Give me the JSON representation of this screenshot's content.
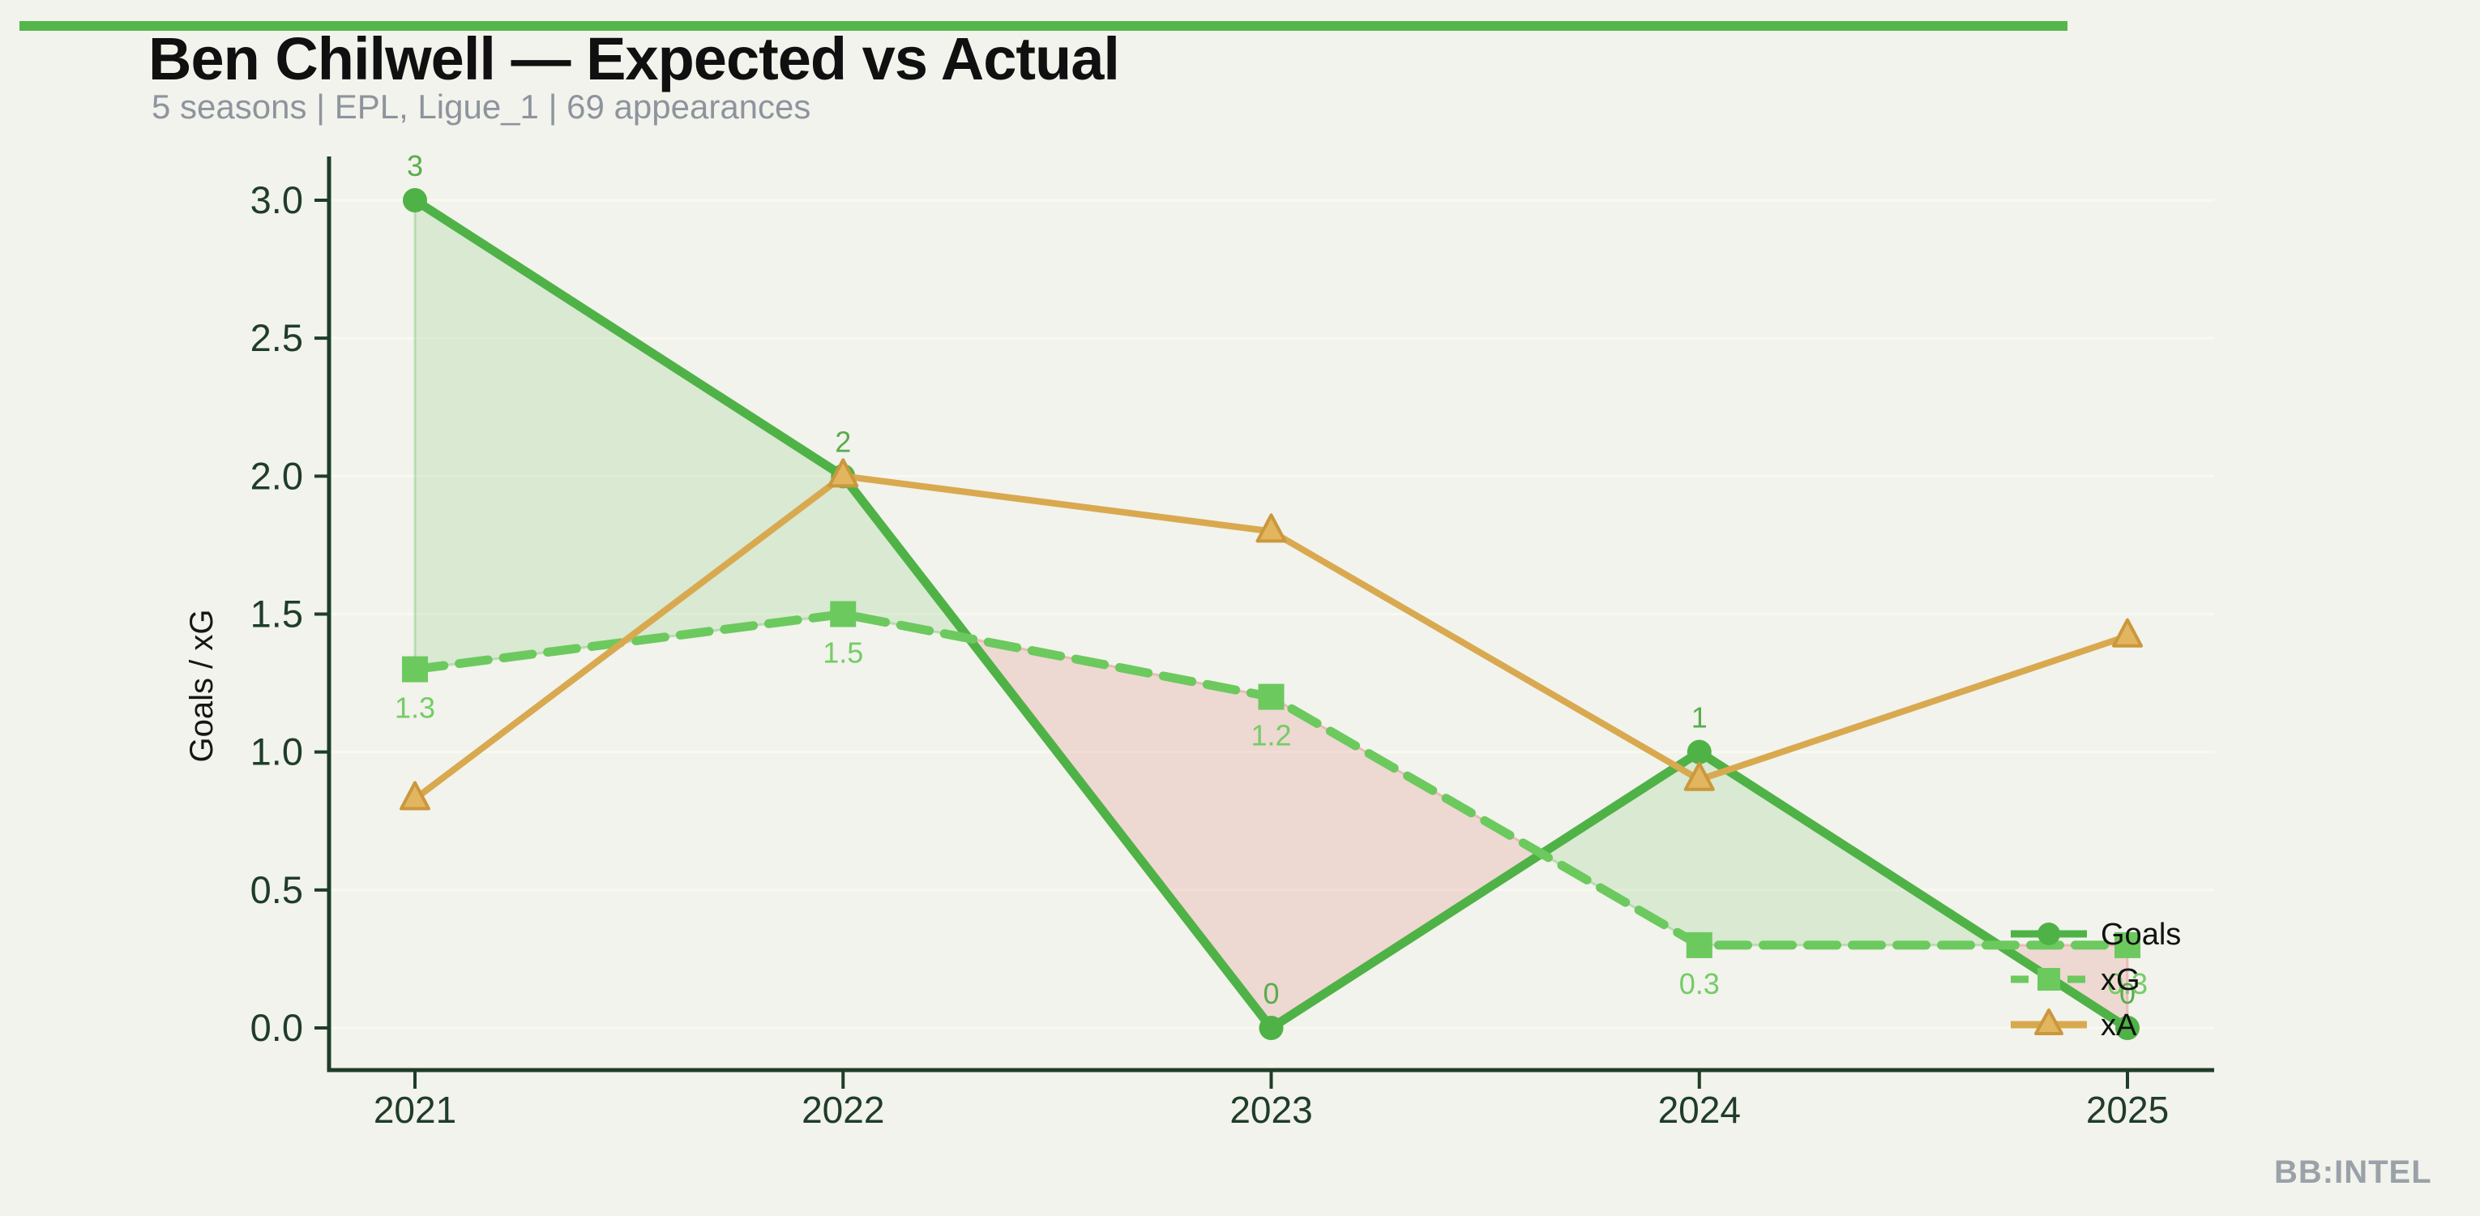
{
  "header": {
    "title": "Ben Chilwell — Expected vs Actual",
    "subtitle": "5 seasons | EPL, Ligue_1 | 69 appearances"
  },
  "watermark": {
    "text": "BB:INTEL"
  },
  "colors": {
    "background": "#f2f3ec",
    "accent_bar": "#55b64c",
    "axis": "#1f3d29",
    "title": "#101010",
    "subtitle": "#8e949e",
    "watermark": "#9aa1a9",
    "grid": "#f8f9f0",
    "legend_text": "#111111",
    "fill_positive": "#57b54c",
    "fill_negative": "#dd5f5f"
  },
  "chart_data": {
    "type": "line",
    "title": "Ben Chilwell — Expected vs Actual",
    "xlabel": "",
    "ylabel": "Goals / xG",
    "x": [
      2021,
      2022,
      2023,
      2024,
      2025
    ],
    "xtick_labels": [
      "2021",
      "2022",
      "2023",
      "2024",
      "2025"
    ],
    "ytick_values": [
      0,
      0.5,
      1,
      1.5,
      2,
      2.5,
      3
    ],
    "ytick_labels": [
      "0.0",
      "0.5",
      "1.0",
      "1.5",
      "2.0",
      "2.5",
      "3.0"
    ],
    "ylim": [
      0,
      3
    ],
    "grid": "horizontal",
    "legend_position": "lower right",
    "series": [
      {
        "name": "Goals",
        "marker": "circle",
        "line_style": "solid",
        "color": "#4fb246",
        "label_color": "#58ad4d",
        "label_position": "above",
        "values": [
          3,
          2,
          0,
          1,
          0
        ],
        "point_labels": [
          "3",
          "2",
          "0",
          "1",
          "0"
        ]
      },
      {
        "name": "xG",
        "marker": "square",
        "line_style": "dashed",
        "color": "#6cc95e",
        "label_color": "#74cc66",
        "label_position": "below",
        "values": [
          1.3,
          1.5,
          1.2,
          0.3,
          0.3
        ],
        "point_labels": [
          "1.3",
          "1.5",
          "1.2",
          "0.3",
          "0.3"
        ]
      },
      {
        "name": "xA",
        "marker": "triangle",
        "line_style": "solid",
        "color": "#d9a950",
        "marker_fill": "#e2b55f",
        "marker_edge": "#cb973d",
        "label_position": "none",
        "values": [
          0.83,
          2.0,
          1.8,
          0.9,
          1.42
        ],
        "point_labels": []
      }
    ],
    "fill_between": {
      "upper": "Goals",
      "lower": "xG",
      "positive_color": "#57b54c",
      "negative_color": "#dd5f5f",
      "positive_opacity": 0.16,
      "negative_opacity": 0.18
    }
  }
}
